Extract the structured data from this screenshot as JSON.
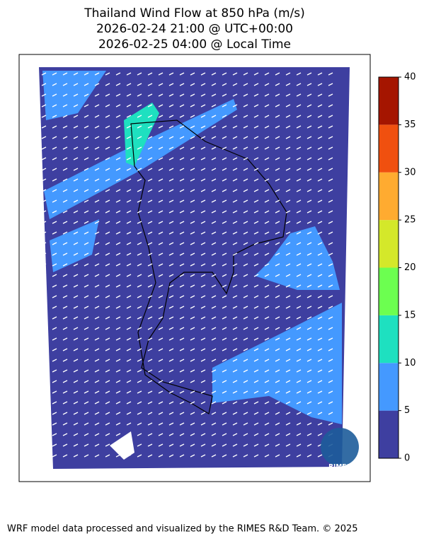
{
  "title_lines": [
    "Thailand Wind Flow at 850 hPa (m/s)",
    "2026-02-24 21:00 @ UTC+00:00",
    "2026-02-25 04:00 @ Local Time"
  ],
  "colorbar": {
    "lim": [
      0,
      40
    ],
    "ticks": [
      0,
      5,
      10,
      15,
      20,
      25,
      30,
      35,
      40
    ],
    "colors": [
      "#3e3fa0",
      "#4499ff",
      "#1ee0c0",
      "#6cff50",
      "#d4e82a",
      "#ffab30",
      "#f0500f",
      "#a51500"
    ]
  },
  "logo_text": "RIMES",
  "footer": "WRF model data processed and visualized by the RIMES R&D Team. © 2025"
}
